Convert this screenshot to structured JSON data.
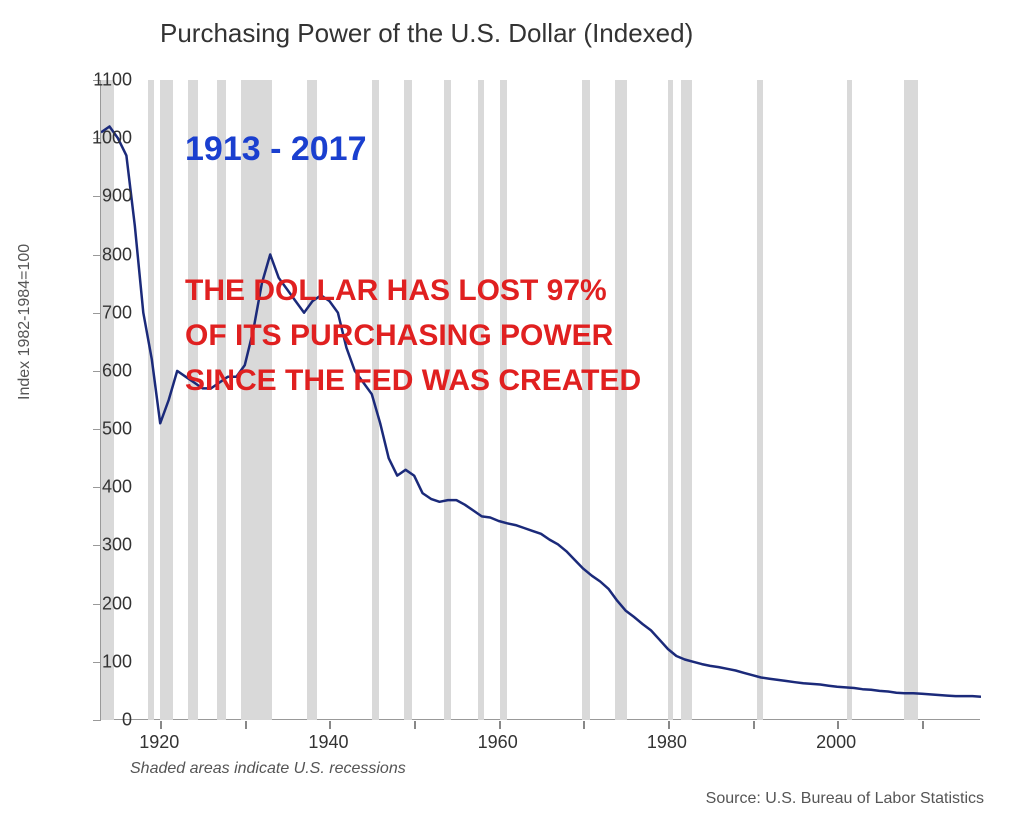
{
  "chart": {
    "type": "line",
    "title": "Purchasing Power of the U.S. Dollar (Indexed)",
    "title_fontsize": 26,
    "title_color": "#333333",
    "y_axis_label": "Index 1982-1984=100",
    "y_axis_label_fontsize": 16,
    "background_color": "#ffffff",
    "plot_background": "#ffffff",
    "line_color": "#1b2a7a",
    "line_width": 2.5,
    "recession_color": "#d9d9d9",
    "xlim": [
      1913,
      2017
    ],
    "ylim": [
      0,
      1100
    ],
    "x_ticks": [
      1920,
      1940,
      1960,
      1980,
      2000
    ],
    "x_minor_ticks": [
      1920,
      1930,
      1940,
      1950,
      1960,
      1970,
      1980,
      1990,
      2000,
      2010
    ],
    "y_ticks": [
      0,
      100,
      200,
      300,
      400,
      500,
      600,
      700,
      800,
      900,
      1000,
      1100
    ],
    "tick_label_fontsize": 18,
    "tick_label_color": "#333333",
    "recessions": [
      {
        "start": 1913,
        "end": 1914.5
      },
      {
        "start": 1918.5,
        "end": 1919.3
      },
      {
        "start": 1920,
        "end": 1921.5
      },
      {
        "start": 1923.3,
        "end": 1924.5
      },
      {
        "start": 1926.7,
        "end": 1927.8
      },
      {
        "start": 1929.6,
        "end": 1933.2
      },
      {
        "start": 1937.3,
        "end": 1938.5
      },
      {
        "start": 1945,
        "end": 1945.8
      },
      {
        "start": 1948.8,
        "end": 1949.8
      },
      {
        "start": 1953.5,
        "end": 1954.4
      },
      {
        "start": 1957.5,
        "end": 1958.3
      },
      {
        "start": 1960.2,
        "end": 1961
      },
      {
        "start": 1969.9,
        "end": 1970.8
      },
      {
        "start": 1973.8,
        "end": 1975.2
      },
      {
        "start": 1980,
        "end": 1980.6
      },
      {
        "start": 1981.5,
        "end": 1982.8
      },
      {
        "start": 1990.5,
        "end": 1991.2
      },
      {
        "start": 2001.2,
        "end": 2001.8
      },
      {
        "start": 2007.9,
        "end": 2009.5
      }
    ],
    "series": [
      {
        "x": 1913,
        "y": 1010
      },
      {
        "x": 1914,
        "y": 1020
      },
      {
        "x": 1915,
        "y": 1000
      },
      {
        "x": 1916,
        "y": 970
      },
      {
        "x": 1917,
        "y": 850
      },
      {
        "x": 1918,
        "y": 700
      },
      {
        "x": 1919,
        "y": 620
      },
      {
        "x": 1920,
        "y": 510
      },
      {
        "x": 1921,
        "y": 550
      },
      {
        "x": 1922,
        "y": 600
      },
      {
        "x": 1923,
        "y": 590
      },
      {
        "x": 1924,
        "y": 580
      },
      {
        "x": 1925,
        "y": 570
      },
      {
        "x": 1926,
        "y": 570
      },
      {
        "x": 1927,
        "y": 580
      },
      {
        "x": 1928,
        "y": 590
      },
      {
        "x": 1929,
        "y": 590
      },
      {
        "x": 1930,
        "y": 610
      },
      {
        "x": 1931,
        "y": 670
      },
      {
        "x": 1932,
        "y": 750
      },
      {
        "x": 1933,
        "y": 800
      },
      {
        "x": 1934,
        "y": 760
      },
      {
        "x": 1935,
        "y": 740
      },
      {
        "x": 1936,
        "y": 720
      },
      {
        "x": 1937,
        "y": 700
      },
      {
        "x": 1938,
        "y": 720
      },
      {
        "x": 1939,
        "y": 730
      },
      {
        "x": 1940,
        "y": 720
      },
      {
        "x": 1941,
        "y": 700
      },
      {
        "x": 1942,
        "y": 640
      },
      {
        "x": 1943,
        "y": 600
      },
      {
        "x": 1944,
        "y": 580
      },
      {
        "x": 1945,
        "y": 560
      },
      {
        "x": 1946,
        "y": 510
      },
      {
        "x": 1947,
        "y": 450
      },
      {
        "x": 1948,
        "y": 420
      },
      {
        "x": 1949,
        "y": 430
      },
      {
        "x": 1950,
        "y": 420
      },
      {
        "x": 1951,
        "y": 390
      },
      {
        "x": 1952,
        "y": 380
      },
      {
        "x": 1953,
        "y": 375
      },
      {
        "x": 1954,
        "y": 378
      },
      {
        "x": 1955,
        "y": 378
      },
      {
        "x": 1956,
        "y": 370
      },
      {
        "x": 1957,
        "y": 360
      },
      {
        "x": 1958,
        "y": 350
      },
      {
        "x": 1959,
        "y": 348
      },
      {
        "x": 1960,
        "y": 342
      },
      {
        "x": 1961,
        "y": 338
      },
      {
        "x": 1962,
        "y": 335
      },
      {
        "x": 1963,
        "y": 330
      },
      {
        "x": 1964,
        "y": 325
      },
      {
        "x": 1965,
        "y": 320
      },
      {
        "x": 1966,
        "y": 310
      },
      {
        "x": 1967,
        "y": 302
      },
      {
        "x": 1968,
        "y": 290
      },
      {
        "x": 1969,
        "y": 275
      },
      {
        "x": 1970,
        "y": 260
      },
      {
        "x": 1971,
        "y": 248
      },
      {
        "x": 1972,
        "y": 238
      },
      {
        "x": 1973,
        "y": 225
      },
      {
        "x": 1974,
        "y": 205
      },
      {
        "x": 1975,
        "y": 188
      },
      {
        "x": 1976,
        "y": 177
      },
      {
        "x": 1977,
        "y": 165
      },
      {
        "x": 1978,
        "y": 154
      },
      {
        "x": 1979,
        "y": 138
      },
      {
        "x": 1980,
        "y": 122
      },
      {
        "x": 1981,
        "y": 110
      },
      {
        "x": 1982,
        "y": 104
      },
      {
        "x": 1983,
        "y": 100
      },
      {
        "x": 1984,
        "y": 96
      },
      {
        "x": 1985,
        "y": 93
      },
      {
        "x": 1986,
        "y": 91
      },
      {
        "x": 1987,
        "y": 88
      },
      {
        "x": 1988,
        "y": 85
      },
      {
        "x": 1989,
        "y": 81
      },
      {
        "x": 1990,
        "y": 77
      },
      {
        "x": 1991,
        "y": 73
      },
      {
        "x": 1992,
        "y": 71
      },
      {
        "x": 1993,
        "y": 69
      },
      {
        "x": 1994,
        "y": 67
      },
      {
        "x": 1995,
        "y": 65
      },
      {
        "x": 1996,
        "y": 63
      },
      {
        "x": 1997,
        "y": 62
      },
      {
        "x": 1998,
        "y": 61
      },
      {
        "x": 1999,
        "y": 59
      },
      {
        "x": 2000,
        "y": 57
      },
      {
        "x": 2001,
        "y": 56
      },
      {
        "x": 2002,
        "y": 55
      },
      {
        "x": 2003,
        "y": 53
      },
      {
        "x": 2004,
        "y": 52
      },
      {
        "x": 2005,
        "y": 50
      },
      {
        "x": 2006,
        "y": 49
      },
      {
        "x": 2007,
        "y": 47
      },
      {
        "x": 2008,
        "y": 46
      },
      {
        "x": 2009,
        "y": 46
      },
      {
        "x": 2010,
        "y": 45
      },
      {
        "x": 2011,
        "y": 44
      },
      {
        "x": 2012,
        "y": 43
      },
      {
        "x": 2013,
        "y": 42
      },
      {
        "x": 2014,
        "y": 41
      },
      {
        "x": 2015,
        "y": 41
      },
      {
        "x": 2016,
        "y": 41
      },
      {
        "x": 2017,
        "y": 40
      }
    ]
  },
  "annotations": {
    "date_range": "1913 - 2017",
    "date_range_color": "#1a3fcf",
    "date_range_fontsize": 34,
    "main_line1": "THE DOLLAR HAS LOST 97%",
    "main_line2": "OF ITS PURCHASING POWER",
    "main_line3": "SINCE THE FED WAS CREATED",
    "main_color": "#e02020",
    "main_fontsize": 30
  },
  "footnote": "Shaded areas indicate U.S. recessions",
  "source": "Source: U.S. Bureau of Labor Statistics"
}
